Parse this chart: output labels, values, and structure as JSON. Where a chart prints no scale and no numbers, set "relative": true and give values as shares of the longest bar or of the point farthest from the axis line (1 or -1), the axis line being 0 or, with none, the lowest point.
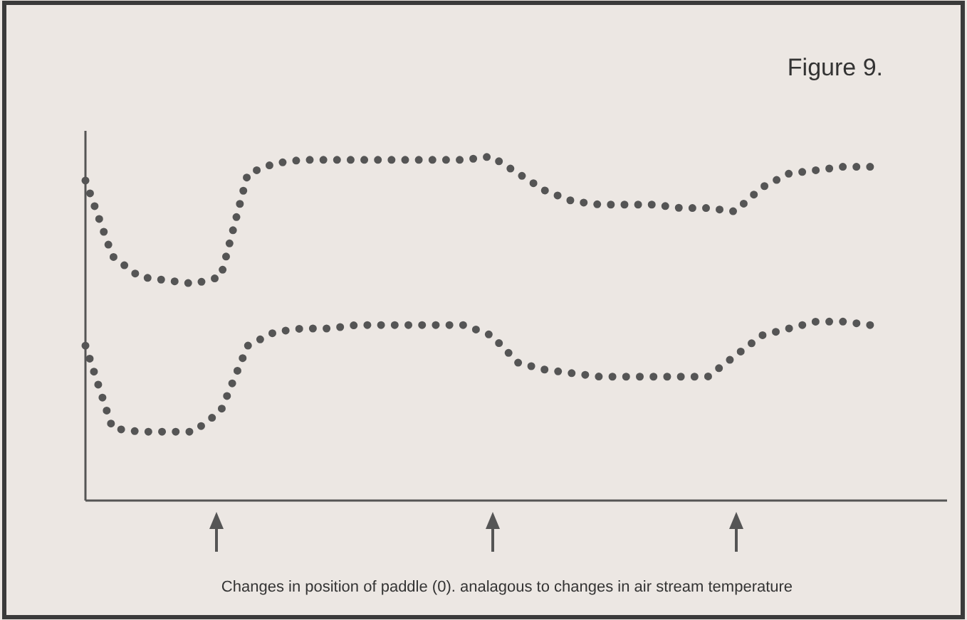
{
  "chart_data": {
    "type": "line",
    "title": "Figure 9.",
    "relative": true,
    "line_style": "dotted",
    "categories": [
      null,
      null,
      null,
      null,
      null,
      null,
      null,
      null,
      null,
      null,
      null,
      null,
      null,
      null,
      null,
      null,
      null,
      null,
      null,
      null,
      null,
      null,
      null,
      null,
      null,
      null,
      null,
      null,
      null,
      null
    ],
    "series": [
      {
        "color": "#555555",
        "values": [
          0.93,
          0.71,
          0.65,
          0.64,
          0.63,
          0.65,
          0.95,
          0.98,
          0.99,
          0.99,
          0.99,
          0.99,
          0.99,
          0.99,
          0.99,
          1.0,
          0.95,
          0.9,
          0.87,
          0.86,
          0.86,
          0.86,
          0.85,
          0.85,
          0.84,
          0.91,
          0.95,
          0.96,
          0.97,
          0.97
        ]
      },
      {
        "color": "#555555",
        "values": [
          0.45,
          0.21,
          0.2,
          0.2,
          0.2,
          0.26,
          0.45,
          0.49,
          0.5,
          0.5,
          0.51,
          0.51,
          0.51,
          0.51,
          0.51,
          0.48,
          0.4,
          0.38,
          0.37,
          0.36,
          0.36,
          0.36,
          0.36,
          0.36,
          0.42,
          0.48,
          0.5,
          0.52,
          0.52,
          0.51
        ]
      }
    ],
    "annotations": [
      "Changes in position of paddle (0). analagous to changes in air stream temperature"
    ]
  }
}
